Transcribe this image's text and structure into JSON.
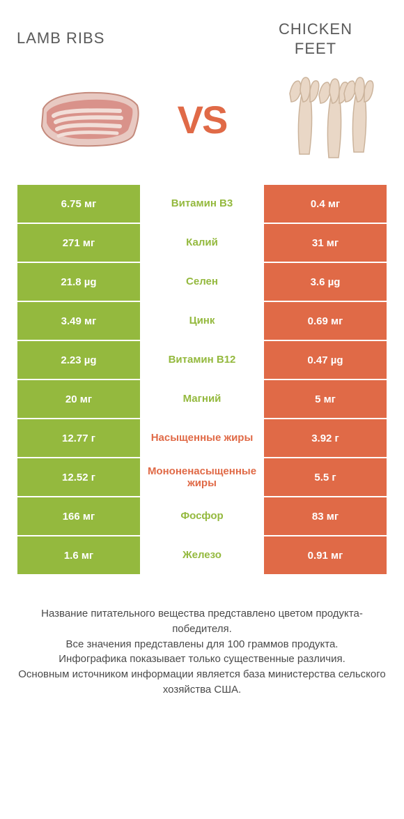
{
  "header": {
    "left_title": "LAMB RIBS",
    "right_title_line1": "CHICKEN",
    "right_title_line2": "FEET",
    "vs": "VS"
  },
  "colors": {
    "left_bg": "#94b93e",
    "right_bg": "#e06a47",
    "mid_bg": "#ffffff",
    "left_text": "#94b93e",
    "right_text": "#e06a47",
    "white": "#ffffff",
    "vs_color": "#e06a47",
    "border": "#ffffff"
  },
  "rows": [
    {
      "left": "6.75 мг",
      "mid": "Витамин B3",
      "right": "0.4 мг",
      "winner": "left"
    },
    {
      "left": "271 мг",
      "mid": "Калий",
      "right": "31 мг",
      "winner": "left"
    },
    {
      "left": "21.8 µg",
      "mid": "Селен",
      "right": "3.6 µg",
      "winner": "left"
    },
    {
      "left": "3.49 мг",
      "mid": "Цинк",
      "right": "0.69 мг",
      "winner": "left"
    },
    {
      "left": "2.23 µg",
      "mid": "Витамин B12",
      "right": "0.47 µg",
      "winner": "left"
    },
    {
      "left": "20 мг",
      "mid": "Магний",
      "right": "5 мг",
      "winner": "left"
    },
    {
      "left": "12.77 г",
      "mid": "Насыщенные жиры",
      "right": "3.92 г",
      "winner": "right"
    },
    {
      "left": "12.52 г",
      "mid": "Мононенасыщенные жиры",
      "right": "5.5 г",
      "winner": "right"
    },
    {
      "left": "166 мг",
      "mid": "Фосфор",
      "right": "83 мг",
      "winner": "left"
    },
    {
      "left": "1.6 мг",
      "mid": "Железо",
      "right": "0.91 мг",
      "winner": "left"
    }
  ],
  "footer": {
    "line1": "Название питательного вещества представлено цветом продукта-победителя.",
    "line2": "Все значения представлены для 100 граммов продукта.",
    "line3": "Инфографика показывает только существенные различия.",
    "line4": "Основным источником информации является база министерства сельского хозяйства США."
  }
}
